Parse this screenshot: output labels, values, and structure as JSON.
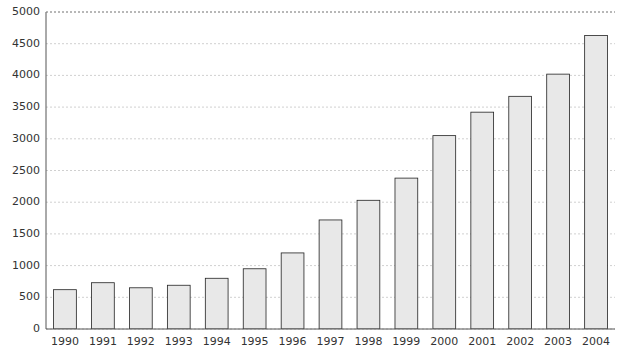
{
  "chart_data": {
    "type": "bar",
    "categories": [
      "1990",
      "1991",
      "1992",
      "1993",
      "1994",
      "1995",
      "1996",
      "1997",
      "1998",
      "1999",
      "2000",
      "2001",
      "2002",
      "2003",
      "2004"
    ],
    "values": [
      620,
      730,
      650,
      690,
      800,
      950,
      1200,
      1720,
      2030,
      2380,
      3050,
      3420,
      3670,
      4020,
      4630
    ],
    "color": "#e8e8e8",
    "ylim": [
      0,
      5000
    ],
    "yticks": [
      0,
      500,
      1000,
      1500,
      2000,
      2500,
      3000,
      3500,
      4000,
      4500,
      5000
    ],
    "grid": true
  }
}
